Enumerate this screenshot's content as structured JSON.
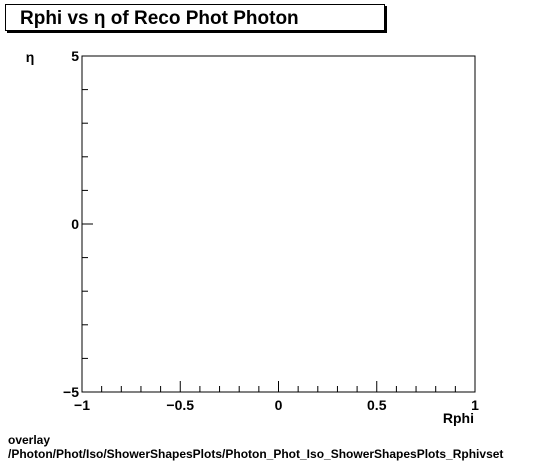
{
  "chart_data": {
    "type": "scatter",
    "title": "Rphi vs  η of Reco Phot Photon",
    "xlabel": "Rphi",
    "ylabel": "η",
    "xlim": [
      -1,
      1
    ],
    "ylim": [
      -5,
      5
    ],
    "x_ticks": [
      -1,
      -0.5,
      0,
      0.5,
      1
    ],
    "x_tick_labels": [
      "−1",
      "−0.5",
      "0",
      "0.5",
      "1"
    ],
    "y_ticks": [
      -5,
      0,
      5
    ],
    "y_tick_labels": [
      "−5",
      "0",
      "5"
    ],
    "series": [],
    "grid": false,
    "legend": "none"
  },
  "footer": {
    "line1": "overlay",
    "line2": "/Photon/Phot/Iso/ShowerShapesPlots/Photon_Phot_Iso_ShowerShapesPlots_Rphivset"
  }
}
